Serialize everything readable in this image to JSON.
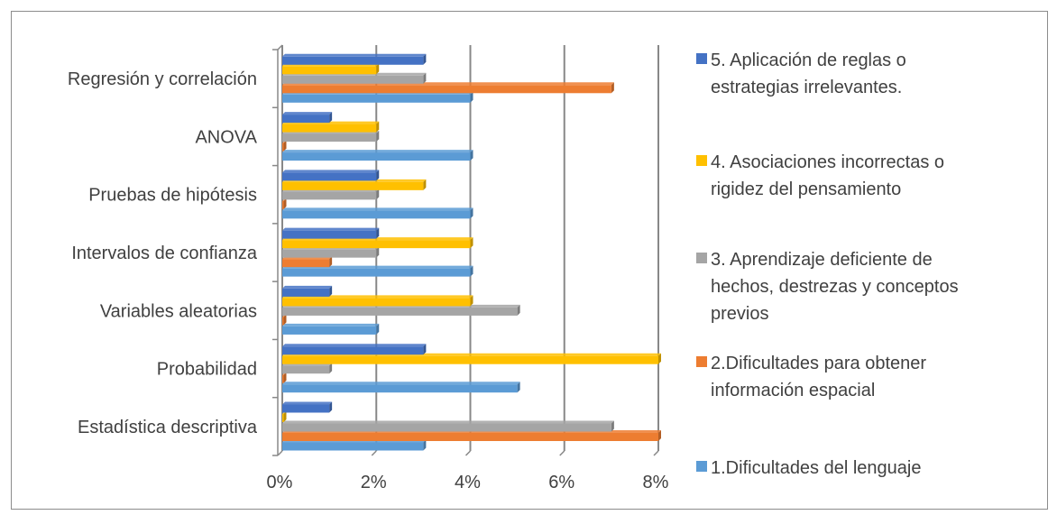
{
  "chart_data": {
    "type": "bar",
    "orientation": "horizontal",
    "categories": [
      "Estadística descriptiva",
      "Probabilidad",
      "Variables aleatorias",
      "Intervalos de confianza",
      "Pruebas de hipótesis",
      "ANOVA",
      "Regresión y correlación"
    ],
    "series": [
      {
        "name": "1.Dificultades del lenguaje",
        "color": "#5b9bd5",
        "values": [
          3,
          5,
          2,
          4,
          4,
          4,
          4
        ]
      },
      {
        "name": "2.Dificultades para obtener información espacial",
        "color": "#ed7d31",
        "values": [
          8,
          0,
          0,
          1,
          0,
          0,
          7
        ]
      },
      {
        "name": "3. Aprendizaje deficiente de hechos, destrezas y conceptos previos",
        "color": "#a5a5a5",
        "values": [
          7,
          1,
          5,
          2,
          2,
          2,
          3
        ]
      },
      {
        "name": "4. Asociaciones incorrectas o rigidez del pensamiento",
        "color": "#ffc000",
        "values": [
          0,
          8,
          4,
          4,
          3,
          2,
          2
        ]
      },
      {
        "name": "5. Aplicación de reglas o estrategias irrelevantes.",
        "color": "#4472c4",
        "values": [
          1,
          3,
          1,
          2,
          2,
          1,
          3
        ]
      }
    ],
    "x_ticks": [
      "0%",
      "2%",
      "4%",
      "6%",
      "8%"
    ],
    "xlim": [
      0,
      8
    ],
    "unit": "%",
    "grid": true,
    "legend_position": "right",
    "legend_lines": [
      [
        "1.Dificultades del lenguaje"
      ],
      [
        "2.Dificultades para obtener",
        "información espacial"
      ],
      [
        "3. Aprendizaje deficiente de",
        "hechos, destrezas y conceptos",
        "previos"
      ],
      [
        "4. Asociaciones incorrectas o",
        "rigidez del pensamiento"
      ],
      [
        "5. Aplicación de reglas o",
        "estrategias irrelevantes."
      ]
    ]
  }
}
